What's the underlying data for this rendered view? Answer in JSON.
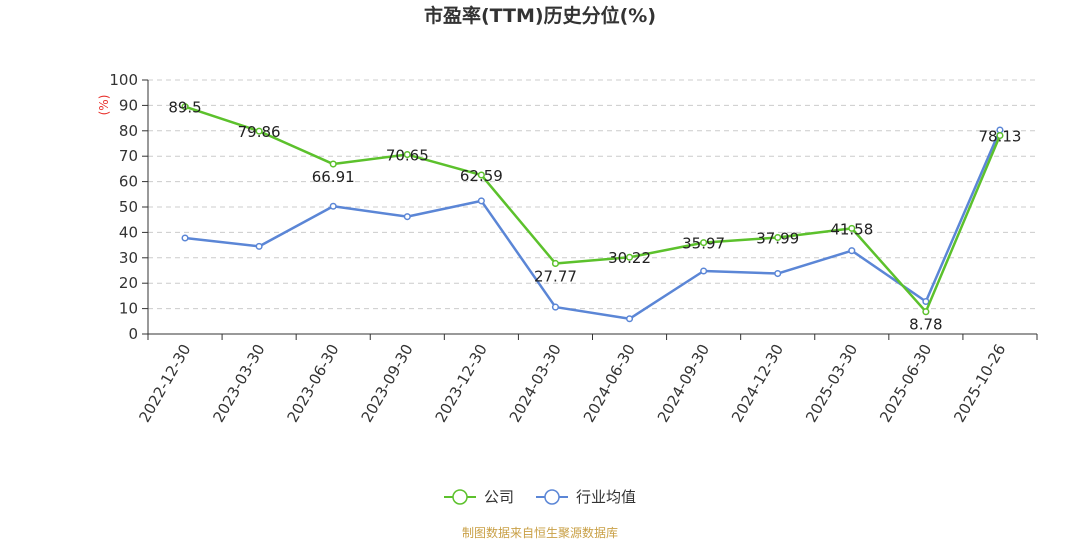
{
  "title": "市盈率(TTM)历史分位(%)",
  "source": "制图数据来自恒生聚源数据库",
  "chart_data": {
    "type": "line",
    "title": "市盈率(TTM)历史分位(%)",
    "ylabel": "(%)",
    "ylim": [
      0,
      100
    ],
    "yticks": [
      0,
      10,
      20,
      30,
      40,
      50,
      60,
      70,
      80,
      90,
      100
    ],
    "grid": "horizontal-dashed",
    "legend_position": "bottom-center",
    "x": [
      "2022-12-30",
      "2023-03-30",
      "2023-06-30",
      "2023-09-30",
      "2023-12-30",
      "2024-03-30",
      "2024-06-30",
      "2024-09-30",
      "2024-12-30",
      "2025-03-30",
      "2025-06-30",
      "2025-10-26"
    ],
    "series": [
      {
        "name": "公司",
        "color": "#5cc12c",
        "show_labels": true,
        "values": [
          89.5,
          79.86,
          66.91,
          70.65,
          62.59,
          27.77,
          30.22,
          35.97,
          37.99,
          41.58,
          8.78,
          78.13
        ]
      },
      {
        "name": "行业均值",
        "color": "#5b86d6",
        "show_labels": false,
        "values": [
          37.8,
          34.5,
          50.3,
          46.2,
          52.4,
          10.6,
          6.0,
          24.8,
          23.8,
          32.8,
          12.8,
          80.3
        ]
      }
    ]
  }
}
